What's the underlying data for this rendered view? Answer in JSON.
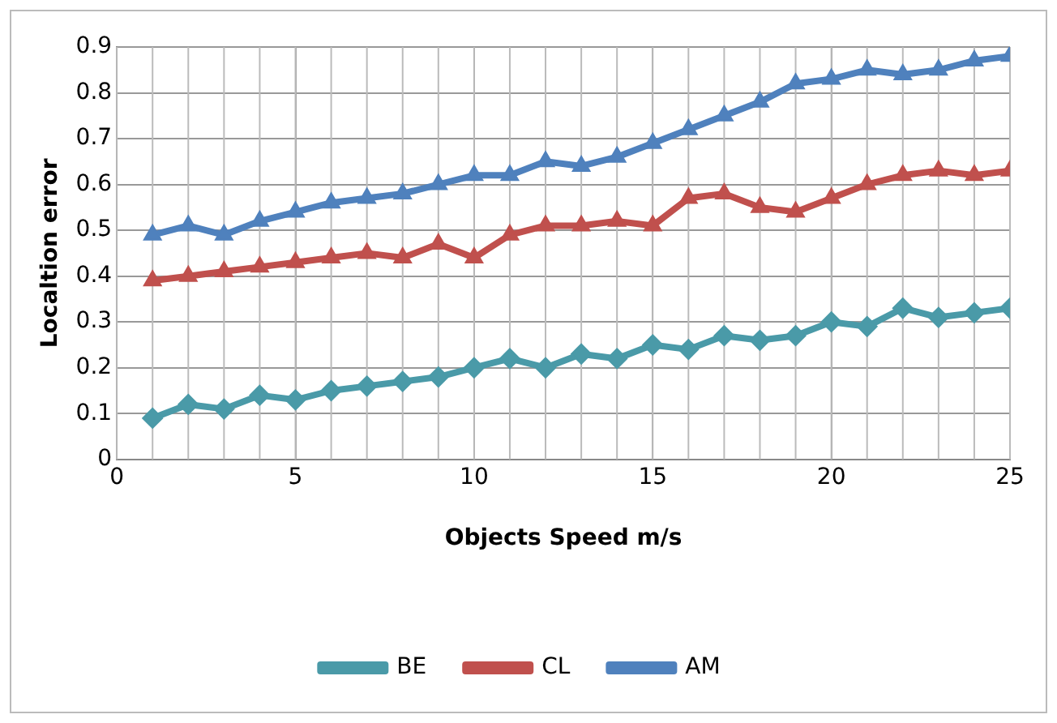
{
  "chart_data": {
    "type": "line",
    "xlabel": "Objects Speed m/s",
    "ylabel": "Localtion error",
    "x": [
      1,
      2,
      3,
      4,
      5,
      6,
      7,
      8,
      9,
      10,
      11,
      12,
      13,
      14,
      15,
      16,
      17,
      18,
      19,
      20,
      21,
      22,
      23,
      24,
      25
    ],
    "xlim": [
      0,
      25
    ],
    "xticks": [
      0,
      5,
      10,
      15,
      20,
      25
    ],
    "ylim": [
      0,
      0.9
    ],
    "yticks": [
      0,
      0.1,
      0.2,
      0.3,
      0.4,
      0.5,
      0.6,
      0.7,
      0.8,
      0.9
    ],
    "grid": true,
    "legend": "bottom",
    "series": [
      {
        "name": "BE",
        "color": "#4a9aa8",
        "marker": "diamond",
        "values": [
          0.09,
          0.12,
          0.11,
          0.14,
          0.13,
          0.15,
          0.16,
          0.17,
          0.18,
          0.2,
          0.22,
          0.2,
          0.23,
          0.22,
          0.25,
          0.24,
          0.27,
          0.26,
          0.27,
          0.3,
          0.29,
          0.33,
          0.31,
          0.32,
          0.33
        ]
      },
      {
        "name": "CL",
        "color": "#c0504d",
        "marker": "triangle",
        "values": [
          0.39,
          0.4,
          0.41,
          0.42,
          0.43,
          0.44,
          0.45,
          0.44,
          0.47,
          0.44,
          0.49,
          0.51,
          0.51,
          0.52,
          0.51,
          0.57,
          0.58,
          0.55,
          0.54,
          0.57,
          0.6,
          0.62,
          0.63,
          0.62,
          0.63
        ]
      },
      {
        "name": "AM",
        "color": "#4f81bd",
        "marker": "triangle",
        "values": [
          0.49,
          0.51,
          0.49,
          0.52,
          0.54,
          0.56,
          0.57,
          0.58,
          0.6,
          0.62,
          0.62,
          0.65,
          0.64,
          0.66,
          0.69,
          0.72,
          0.75,
          0.78,
          0.82,
          0.83,
          0.85,
          0.84,
          0.85,
          0.87,
          0.88
        ]
      }
    ]
  }
}
